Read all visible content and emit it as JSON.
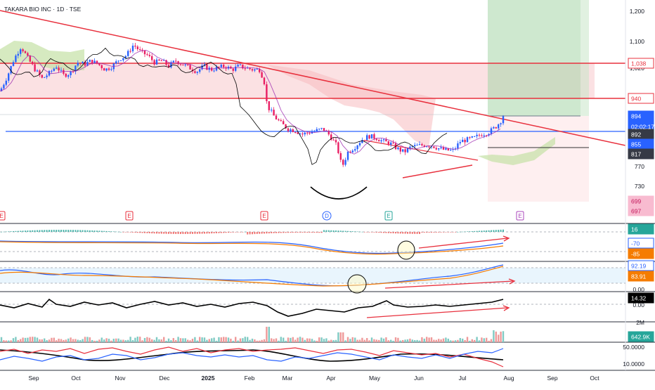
{
  "header": {
    "symbol_title": "TAKARA BIO INC · 1D · TSE"
  },
  "colors": {
    "up": "#2962ff",
    "down": "#e91e63",
    "trendline": "#e8303d",
    "support": "#2962ff",
    "zone_red": "#f7c8cc",
    "zone_green": "#a5d6a7",
    "cloud_green": "#8bc34a",
    "cloud_red": "#ef9a9a",
    "axis_text": "#131722"
  },
  "price_axis": {
    "ticks": [
      "1,200",
      "1,100",
      "1,020",
      "770",
      "730",
      "0.00",
      "0.00",
      "2M",
      "50.0000",
      "10.0000"
    ],
    "labels": [
      {
        "text": "1,038",
        "style": "red-box"
      },
      {
        "text": "940",
        "style": "red-box"
      },
      {
        "text": "894",
        "style": "blue"
      },
      {
        "text": "02:02:17",
        "style": "blue"
      },
      {
        "text": "892",
        "style": "dark"
      },
      {
        "text": "855",
        "style": "blue"
      },
      {
        "text": "817",
        "style": "dark"
      },
      {
        "text": "699",
        "style": "pink"
      },
      {
        "text": "697",
        "style": "pink"
      },
      {
        "text": "16",
        "style": "teal"
      },
      {
        "text": "-70",
        "style": "blue-outline"
      },
      {
        "text": "-85",
        "style": "orange"
      },
      {
        "text": "92.19",
        "style": "blue-outline"
      },
      {
        "text": "83.91",
        "style": "orange"
      },
      {
        "text": "14.32",
        "style": "black"
      },
      {
        "text": "642.9K",
        "style": "teal"
      }
    ]
  },
  "time_axis": {
    "labels": [
      "Sep",
      "Oct",
      "Nov",
      "Dec",
      "2025",
      "Feb",
      "Mar",
      "Apr",
      "May",
      "Jun",
      "Jul",
      "Aug",
      "Sep",
      "Oct"
    ]
  },
  "event_markers": [
    "E",
    "E",
    "E",
    "D",
    "E",
    "E"
  ],
  "chart_data": {
    "type": "candlestick",
    "timeframe": "1D",
    "ylim": [
      690,
      1220
    ],
    "levels": [
      1038,
      940,
      894,
      892,
      855,
      817,
      699,
      697
    ],
    "points": [
      [
        0,
        960
      ],
      [
        10,
        1000
      ],
      [
        20,
        1050
      ],
      [
        30,
        1085
      ],
      [
        40,
        1050
      ],
      [
        50,
        1020
      ],
      [
        60,
        995
      ],
      [
        70,
        1010
      ],
      [
        80,
        1030
      ],
      [
        90,
        1005
      ],
      [
        100,
        1010
      ],
      [
        110,
        1040
      ],
      [
        120,
        1035
      ],
      [
        130,
        1045
      ],
      [
        140,
        1035
      ],
      [
        150,
        1020
      ],
      [
        160,
        1030
      ],
      [
        170,
        1050
      ],
      [
        180,
        1060
      ],
      [
        190,
        1090
      ],
      [
        200,
        1070
      ],
      [
        210,
        1060
      ],
      [
        220,
        1040
      ],
      [
        230,
        1045
      ],
      [
        240,
        1030
      ],
      [
        250,
        1045
      ],
      [
        260,
        1035
      ],
      [
        270,
        1025
      ],
      [
        280,
        1015
      ],
      [
        290,
        1030
      ],
      [
        300,
        1020
      ],
      [
        310,
        1025
      ],
      [
        320,
        1030
      ],
      [
        330,
        1020
      ],
      [
        340,
        1030
      ],
      [
        350,
        1025
      ],
      [
        360,
        1020
      ],
      [
        370,
        1020
      ],
      [
        376,
        985
      ],
      [
        380,
        920
      ],
      [
        390,
        890
      ],
      [
        400,
        870
      ],
      [
        410,
        855
      ],
      [
        420,
        850
      ],
      [
        430,
        840
      ],
      [
        440,
        845
      ],
      [
        450,
        850
      ],
      [
        460,
        855
      ],
      [
        470,
        835
      ],
      [
        480,
        805
      ],
      [
        484,
        765
      ],
      [
        488,
        755
      ],
      [
        495,
        790
      ],
      [
        505,
        805
      ],
      [
        515,
        825
      ],
      [
        525,
        835
      ],
      [
        535,
        830
      ],
      [
        545,
        820
      ],
      [
        555,
        815
      ],
      [
        565,
        800
      ],
      [
        575,
        790
      ],
      [
        585,
        805
      ],
      [
        595,
        808
      ],
      [
        605,
        810
      ],
      [
        615,
        808
      ],
      [
        625,
        800
      ],
      [
        635,
        795
      ],
      [
        645,
        795
      ],
      [
        655,
        820
      ],
      [
        665,
        825
      ],
      [
        675,
        830
      ],
      [
        685,
        840
      ],
      [
        695,
        845
      ],
      [
        705,
        860
      ],
      [
        712,
        875
      ],
      [
        716,
        892
      ]
    ],
    "panes": [
      "price",
      "macd",
      "rsi",
      "indicator",
      "volume",
      "oscillator"
    ]
  }
}
